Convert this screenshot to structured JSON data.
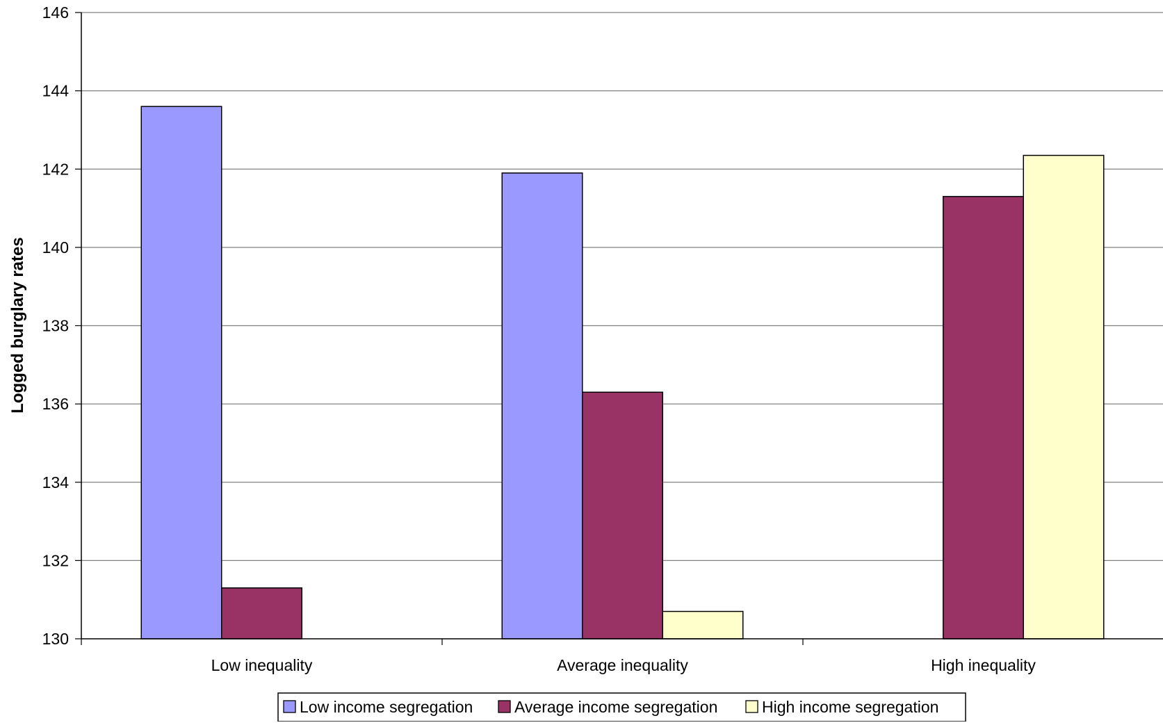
{
  "chart_data": {
    "type": "bar",
    "title": "",
    "xlabel": "",
    "ylabel": "Logged burglary rates",
    "ylim": [
      130,
      146
    ],
    "yticks": [
      130,
      132,
      134,
      136,
      138,
      140,
      142,
      144,
      146
    ],
    "grid": true,
    "legend_position": "bottom-center",
    "categories": [
      "Low inequality",
      "Average inequality",
      "High inequality"
    ],
    "series": [
      {
        "name": "Low income segregation",
        "color": "#9999ff",
        "values": [
          143.6,
          141.9,
          null
        ]
      },
      {
        "name": "Average income segregation",
        "color": "#993366",
        "values": [
          131.3,
          136.3,
          141.3
        ]
      },
      {
        "name": "High income segregation",
        "color": "#ffffcc",
        "values": [
          null,
          130.7,
          142.35
        ]
      }
    ]
  }
}
